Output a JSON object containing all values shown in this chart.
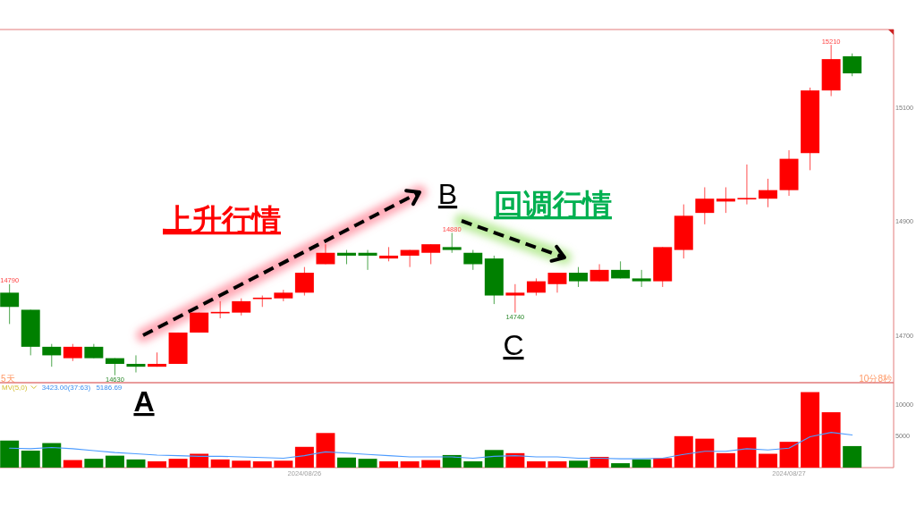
{
  "chart_data": [
    {
      "type": "candlestick",
      "categories": [
        null,
        null,
        null,
        null,
        null,
        null,
        null,
        null,
        null,
        null,
        null,
        null,
        null,
        null,
        null,
        null,
        null,
        null,
        null,
        null,
        null,
        null,
        null,
        null,
        null,
        null,
        null,
        null,
        null,
        null,
        null,
        null,
        null,
        null,
        null,
        null,
        null,
        null,
        null,
        null,
        null
      ],
      "ohlc": [
        [
          14775,
          14790,
          14720,
          14750
        ],
        [
          14745,
          14745,
          14665,
          14680
        ],
        [
          14680,
          14685,
          14645,
          14665
        ],
        [
          14660,
          14685,
          14655,
          14680
        ],
        [
          14680,
          14685,
          14660,
          14660
        ],
        [
          14660,
          14660,
          14630,
          14650
        ],
        [
          14650,
          14665,
          14635,
          14645
        ],
        [
          14645,
          14670,
          14645,
          14650
        ],
        [
          14650,
          14705,
          14650,
          14705
        ],
        [
          14705,
          14740,
          14705,
          14740
        ],
        [
          14740,
          14760,
          14730,
          14740
        ],
        [
          14740,
          14765,
          14735,
          14760
        ],
        [
          14765,
          14770,
          14750,
          14765
        ],
        [
          14765,
          14780,
          14760,
          14775
        ],
        [
          14775,
          14820,
          14770,
          14810
        ],
        [
          14825,
          14860,
          14825,
          14845
        ],
        [
          14845,
          14850,
          14825,
          14840
        ],
        [
          14845,
          14850,
          14815,
          14840
        ],
        [
          14835,
          14855,
          14830,
          14840
        ],
        [
          14840,
          14850,
          14820,
          14850
        ],
        [
          14845,
          14860,
          14825,
          14860
        ],
        [
          14855,
          14880,
          14845,
          14850
        ],
        [
          14845,
          14850,
          14815,
          14825
        ],
        [
          14835,
          14840,
          14755,
          14770
        ],
        [
          14770,
          14790,
          14740,
          14775
        ],
        [
          14775,
          14800,
          14770,
          14795
        ],
        [
          14790,
          14810,
          14775,
          14810
        ],
        [
          14810,
          14820,
          14785,
          14795
        ],
        [
          14795,
          14825,
          14795,
          14815
        ],
        [
          14815,
          14830,
          14800,
          14800
        ],
        [
          14800,
          14815,
          14785,
          14795
        ],
        [
          14795,
          14855,
          14785,
          14855
        ],
        [
          14850,
          14930,
          14835,
          14910
        ],
        [
          14915,
          14960,
          14895,
          14940
        ],
        [
          14935,
          14960,
          14915,
          14940
        ],
        [
          14940,
          15000,
          14930,
          14940
        ],
        [
          14940,
          14975,
          14925,
          14955
        ],
        [
          14955,
          15025,
          14945,
          15010
        ],
        [
          15020,
          15135,
          14990,
          15130
        ],
        [
          15130,
          15210,
          15120,
          15185
        ],
        [
          15190,
          15195,
          15155,
          15160
        ]
      ],
      "colors": [
        "#008000",
        "#008000",
        "#008000",
        "#ff0000",
        "#008000",
        "#008000",
        "#008000",
        "#ff0000",
        "#ff0000",
        "#ff0000",
        "#ff0000",
        "#ff0000",
        "#ff0000",
        "#ff0000",
        "#ff0000",
        "#ff0000",
        "#008000",
        "#008000",
        "#ff0000",
        "#ff0000",
        "#ff0000",
        "#008000",
        "#008000",
        "#008000",
        "#ff0000",
        "#ff0000",
        "#ff0000",
        "#008000",
        "#ff0000",
        "#008000",
        "#008000",
        "#ff0000",
        "#ff0000",
        "#ff0000",
        "#ff0000",
        "#ff0000",
        "#ff0000",
        "#ff0000",
        "#ff0000",
        "#ff0000",
        "#008000"
      ],
      "ylim": [
        14617,
        15237
      ],
      "yticks": [
        14700,
        14900,
        15100
      ],
      "tick_labels": "y",
      "annotations": [
        {
          "text": "14790",
          "y": 14790
        },
        {
          "text": "14630",
          "y": 14630
        },
        {
          "text": "14880",
          "y": 14880
        },
        {
          "text": "14740",
          "y": 14740
        },
        {
          "text": "15210",
          "y": 15210
        },
        "上升行情",
        "回调行情",
        "A",
        "B",
        "C",
        "5天",
        "10分8秒"
      ]
    },
    {
      "type": "bar",
      "categories": [
        null,
        null,
        null,
        null,
        null,
        null,
        null,
        null,
        null,
        null,
        null,
        null,
        null,
        null,
        "2024/08/26",
        null,
        null,
        null,
        null,
        null,
        null,
        null,
        null,
        null,
        null,
        null,
        null,
        null,
        null,
        null,
        null,
        null,
        null,
        null,
        null,
        null,
        null,
        "2024/08/27",
        null,
        null,
        null
      ],
      "series": [
        {
          "type": "bar",
          "colors": [
            "#008000",
            "#008000",
            "#008000",
            "#ff0000",
            "#008000",
            "#008000",
            "#008000",
            "#ff0000",
            "#ff0000",
            "#ff0000",
            "#ff0000",
            "#ff0000",
            "#ff0000",
            "#ff0000",
            "#ff0000",
            "#ff0000",
            "#008000",
            "#008000",
            "#ff0000",
            "#ff0000",
            "#ff0000",
            "#008000",
            "#008000",
            "#008000",
            "#ff0000",
            "#ff0000",
            "#ff0000",
            "#008000",
            "#ff0000",
            "#008000",
            "#008000",
            "#ff0000",
            "#ff0000",
            "#ff0000",
            "#ff0000",
            "#ff0000",
            "#ff0000",
            "#ff0000",
            "#ff0000",
            "#ff0000",
            "#008000"
          ],
          "values": [
            4300,
            2700,
            3900,
            1200,
            1400,
            1900,
            1300,
            1000,
            1400,
            2200,
            1300,
            1100,
            1000,
            1100,
            3300,
            5500,
            1600,
            1400,
            1000,
            1000,
            1200,
            2000,
            1000,
            2800,
            2300,
            1000,
            1000,
            1100,
            1700,
            700,
            1300,
            1500,
            5000,
            4600,
            2300,
            4800,
            2200,
            4100,
            12000,
            8800,
            3423
          ]
        },
        {
          "type": "line",
          "color": "#4d9cff",
          "values": [
            3100,
            3000,
            3200,
            3000,
            2700,
            2400,
            2200,
            2000,
            1900,
            1800,
            1800,
            1700,
            1600,
            1500,
            1900,
            2500,
            2300,
            2100,
            1900,
            1700,
            1700,
            1700,
            1500,
            1800,
            1900,
            1700,
            1700,
            1500,
            1500,
            1400,
            1400,
            1500,
            2100,
            2600,
            2600,
            3000,
            2800,
            3100,
            4900,
            5600,
            5186.69
          ]
        }
      ],
      "ylim": [
        0,
        13500
      ],
      "yticks": [
        5000,
        10000
      ],
      "annotations": [
        "MV(5,0)",
        "3423.00(37:63)",
        "5186.69"
      ]
    }
  ]
}
